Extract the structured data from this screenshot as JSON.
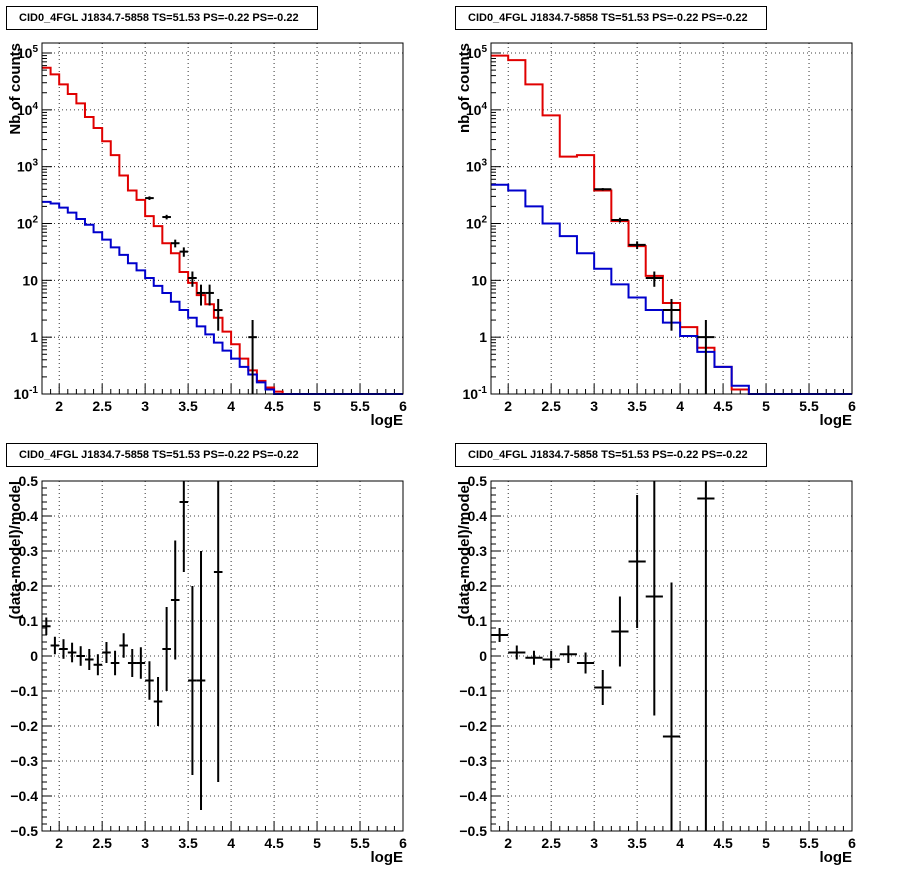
{
  "chart_data": [
    {
      "type": "step-histogram",
      "title": "CID0_4FGL J1834.7-5858 TS=51.53 PS=-0.22 PS=-0.22",
      "xlabel": "logE",
      "ylabel": "Nb of counts",
      "xlim": [
        1.8,
        6.0
      ],
      "ylim": [
        0.1,
        150000
      ],
      "yscale": "log",
      "grid": true,
      "xticks": [
        {
          "v": 2,
          "l": "2"
        },
        {
          "v": 2.5,
          "l": "2.5"
        },
        {
          "v": 3,
          "l": "3"
        },
        {
          "v": 3.5,
          "l": "3.5"
        },
        {
          "v": 4,
          "l": "4"
        },
        {
          "v": 4.5,
          "l": "4.5"
        },
        {
          "v": 5,
          "l": "5"
        },
        {
          "v": 5.5,
          "l": "5.5"
        },
        {
          "v": 6,
          "l": "6"
        }
      ],
      "yticks": [
        {
          "v": 0.1,
          "l": "10",
          "sup": "-1"
        },
        {
          "v": 1,
          "l": "1"
        },
        {
          "v": 10,
          "l": "10"
        },
        {
          "v": 100,
          "l": "10",
          "sup": "2"
        },
        {
          "v": 1000,
          "l": "10",
          "sup": "3"
        },
        {
          "v": 10000,
          "l": "10",
          "sup": "4"
        },
        {
          "v": 100000,
          "l": "10",
          "sup": "5"
        }
      ],
      "series": [
        {
          "color": "#e00000",
          "kind": "step",
          "edges": [
            1.8,
            1.9,
            2.0,
            2.1,
            2.2,
            2.3,
            2.4,
            2.5,
            2.6,
            2.7,
            2.8,
            2.9,
            3.0,
            3.1,
            3.2,
            3.3,
            3.4,
            3.5,
            3.6,
            3.7,
            3.8,
            3.9,
            4.0,
            4.1,
            4.2,
            4.3,
            4.4,
            4.5,
            4.6,
            4.7,
            4.8,
            4.9,
            5.0,
            5.1,
            5.2,
            5.3,
            5.4,
            5.5,
            5.6,
            5.7,
            5.8,
            5.9,
            6.0
          ],
          "values": [
            55000,
            42000,
            28000,
            19000,
            13000,
            7500,
            4800,
            2800,
            1600,
            700,
            380,
            260,
            135,
            90,
            45,
            30,
            14,
            9,
            5.5,
            3.8,
            2.2,
            1.25,
            0.75,
            0.42,
            0.26,
            0.17,
            0.13,
            0.11,
            0.1,
            0.1,
            0.1,
            0.1,
            0.1,
            0.1,
            0.1,
            0.1,
            0.1,
            0.1,
            0.1,
            0.1,
            0.1,
            0.1
          ]
        },
        {
          "color": "#0000cc",
          "kind": "step",
          "edges": [
            1.8,
            1.9,
            2.0,
            2.1,
            2.2,
            2.3,
            2.4,
            2.5,
            2.6,
            2.7,
            2.8,
            2.9,
            3.0,
            3.1,
            3.2,
            3.3,
            3.4,
            3.5,
            3.6,
            3.7,
            3.8,
            3.9,
            4.0,
            4.1,
            4.2,
            4.3,
            4.4,
            4.5,
            4.6,
            4.7,
            4.8,
            4.9,
            5.0,
            5.1,
            5.2,
            5.3,
            5.4,
            5.5,
            5.6,
            5.7,
            5.8,
            5.9,
            6.0
          ],
          "values": [
            240,
            225,
            190,
            155,
            120,
            95,
            70,
            52,
            38,
            28,
            20,
            15,
            11,
            8,
            6,
            4.2,
            3,
            2.2,
            1.55,
            1.12,
            0.8,
            0.58,
            0.42,
            0.3,
            0.22,
            0.16,
            0.12,
            0.1,
            0.1,
            0.1,
            0.1,
            0.1,
            0.1,
            0.1,
            0.1,
            0.1,
            0.1,
            0.1,
            0.1,
            0.1,
            0.1,
            0.1
          ]
        },
        {
          "color": "#000000",
          "kind": "errorbars",
          "halfwidth": 0.05,
          "points": [
            [
              3.05,
              280,
              20,
              20
            ],
            [
              3.25,
              130,
              12,
              12
            ],
            [
              3.35,
              45,
              7,
              7
            ],
            [
              3.45,
              32,
              6,
              6
            ],
            [
              3.55,
              11,
              3.3,
              3.3
            ],
            [
              3.65,
              6,
              2.4,
              2.4
            ],
            [
              3.75,
              6,
              2.4,
              2.4
            ],
            [
              3.85,
              3,
              1.7,
              1.7
            ],
            [
              4.25,
              1,
              0.95,
              1.0
            ]
          ]
        }
      ]
    },
    {
      "type": "step-histogram",
      "title": "CID0_4FGL J1834.7-5858 TS=51.53 PS=-0.22 PS=-0.22",
      "xlabel": "logE",
      "ylabel": "nb of counts",
      "xlim": [
        1.8,
        6.0
      ],
      "ylim": [
        0.1,
        150000
      ],
      "yscale": "log",
      "grid": true,
      "xticks": [
        {
          "v": 2,
          "l": "2"
        },
        {
          "v": 2.5,
          "l": "2.5"
        },
        {
          "v": 3,
          "l": "3"
        },
        {
          "v": 3.5,
          "l": "3.5"
        },
        {
          "v": 4,
          "l": "4"
        },
        {
          "v": 4.5,
          "l": "4.5"
        },
        {
          "v": 5,
          "l": "5"
        },
        {
          "v": 5.5,
          "l": "5.5"
        },
        {
          "v": 6,
          "l": "6"
        }
      ],
      "yticks": [
        {
          "v": 0.1,
          "l": "10",
          "sup": "-1"
        },
        {
          "v": 1,
          "l": "1"
        },
        {
          "v": 10,
          "l": "10"
        },
        {
          "v": 100,
          "l": "10",
          "sup": "2"
        },
        {
          "v": 1000,
          "l": "10",
          "sup": "3"
        },
        {
          "v": 10000,
          "l": "10",
          "sup": "4"
        },
        {
          "v": 100000,
          "l": "10",
          "sup": "5"
        }
      ],
      "series": [
        {
          "color": "#e00000",
          "kind": "step",
          "edges": [
            1.8,
            2.0,
            2.2,
            2.4,
            2.6,
            2.8,
            3.0,
            3.2,
            3.4,
            3.6,
            3.8,
            4.0,
            4.2,
            4.4,
            4.6,
            4.8,
            5.0,
            5.2,
            5.4,
            5.6,
            5.8,
            6.0
          ],
          "values": [
            90000,
            75000,
            28000,
            8000,
            1500,
            1600,
            380,
            110,
            40,
            12,
            4,
            1.5,
            0.65,
            0.3,
            0.12,
            0.1,
            0.1,
            0.1,
            0.1,
            0.1,
            0.1
          ]
        },
        {
          "color": "#0000cc",
          "kind": "step",
          "edges": [
            1.8,
            2.0,
            2.2,
            2.4,
            2.6,
            2.8,
            3.0,
            3.2,
            3.4,
            3.6,
            3.8,
            4.0,
            4.2,
            4.4,
            4.6,
            4.8,
            5.0,
            5.2,
            5.4,
            5.6,
            5.8,
            6.0
          ],
          "values": [
            480,
            380,
            200,
            100,
            60,
            30,
            16,
            8.5,
            5,
            3,
            1.8,
            1.05,
            0.55,
            0.3,
            0.14,
            0.1,
            0.1,
            0.1,
            0.1,
            0.1,
            0.1
          ]
        },
        {
          "color": "#000000",
          "kind": "errorbars",
          "halfwidth": 0.1,
          "points": [
            [
              3.1,
              400,
              20,
              20
            ],
            [
              3.3,
              115,
              11,
              11
            ],
            [
              3.5,
              42,
              6.5,
              6.5
            ],
            [
              3.7,
              11,
              3.3,
              3.3
            ],
            [
              3.9,
              3,
              1.7,
              1.7
            ],
            [
              4.3,
              1,
              0.95,
              1.0
            ]
          ]
        }
      ]
    },
    {
      "type": "scatter-errorbars",
      "title": "CID0_4FGL J1834.7-5858 TS=51.53 PS=-0.22 PS=-0.22",
      "xlabel": "logE",
      "ylabel": "(data-model)/model",
      "xlim": [
        1.8,
        6.0
      ],
      "ylim": [
        -0.5,
        0.5
      ],
      "yscale": "linear",
      "grid": true,
      "xticks": [
        {
          "v": 2,
          "l": "2"
        },
        {
          "v": 2.5,
          "l": "2.5"
        },
        {
          "v": 3,
          "l": "3"
        },
        {
          "v": 3.5,
          "l": "3.5"
        },
        {
          "v": 4,
          "l": "4"
        },
        {
          "v": 4.5,
          "l": "4.5"
        },
        {
          "v": 5,
          "l": "5"
        },
        {
          "v": 5.5,
          "l": "5.5"
        },
        {
          "v": 6,
          "l": "6"
        }
      ],
      "yticks": [
        {
          "v": -0.5,
          "l": "−0.5"
        },
        {
          "v": -0.4,
          "l": "−0.4"
        },
        {
          "v": -0.3,
          "l": "−0.3"
        },
        {
          "v": -0.2,
          "l": "−0.2"
        },
        {
          "v": -0.1,
          "l": "−0.1"
        },
        {
          "v": 0,
          "l": "0"
        },
        {
          "v": 0.1,
          "l": "0.1"
        },
        {
          "v": 0.2,
          "l": "0.2"
        },
        {
          "v": 0.3,
          "l": "0.3"
        },
        {
          "v": 0.4,
          "l": "0.4"
        },
        {
          "v": 0.5,
          "l": "0.5"
        }
      ],
      "series": [
        {
          "color": "#000000",
          "kind": "errorbars",
          "halfwidth": 0.05,
          "points": [
            [
              1.85,
              0.085,
              0.025,
              0.025
            ],
            [
              1.95,
              0.03,
              0.025,
              0.025
            ],
            [
              2.05,
              0.02,
              0.028,
              0.028
            ],
            [
              2.15,
              0.01,
              0.028,
              0.028
            ],
            [
              2.25,
              0.0,
              0.028,
              0.028
            ],
            [
              2.35,
              -0.01,
              0.03,
              0.03
            ],
            [
              2.45,
              -0.025,
              0.03,
              0.03
            ],
            [
              2.55,
              0.01,
              0.03,
              0.03
            ],
            [
              2.65,
              -0.02,
              0.035,
              0.035
            ],
            [
              2.75,
              0.03,
              0.035,
              0.035
            ],
            [
              2.85,
              -0.02,
              0.04,
              0.04
            ],
            [
              2.95,
              -0.02,
              0.045,
              0.045
            ],
            [
              3.05,
              -0.07,
              0.055,
              0.055
            ],
            [
              3.15,
              -0.13,
              0.07,
              0.07
            ],
            [
              3.25,
              0.02,
              0.12,
              0.12
            ],
            [
              3.35,
              0.16,
              0.17,
              0.17
            ],
            [
              3.45,
              0.44,
              0.2,
              0.2
            ],
            [
              3.55,
              -0.07,
              0.27,
              0.27
            ],
            [
              3.65,
              -0.07,
              0.37,
              0.37
            ],
            [
              3.85,
              0.24,
              0.6,
              0.6
            ]
          ]
        }
      ]
    },
    {
      "type": "scatter-errorbars",
      "title": "CID0_4FGL J1834.7-5858 TS=51.53 PS=-0.22 PS=-0.22",
      "xlabel": "logE",
      "ylabel": "(data-model)/model",
      "xlim": [
        1.8,
        6.0
      ],
      "ylim": [
        -0.5,
        0.5
      ],
      "yscale": "linear",
      "grid": true,
      "xticks": [
        {
          "v": 2,
          "l": "2"
        },
        {
          "v": 2.5,
          "l": "2.5"
        },
        {
          "v": 3,
          "l": "3"
        },
        {
          "v": 3.5,
          "l": "3.5"
        },
        {
          "v": 4,
          "l": "4"
        },
        {
          "v": 4.5,
          "l": "4.5"
        },
        {
          "v": 5,
          "l": "5"
        },
        {
          "v": 5.5,
          "l": "5.5"
        },
        {
          "v": 6,
          "l": "6"
        }
      ],
      "yticks": [
        {
          "v": -0.5,
          "l": "−0.5"
        },
        {
          "v": -0.4,
          "l": "−0.4"
        },
        {
          "v": -0.3,
          "l": "−0.3"
        },
        {
          "v": -0.2,
          "l": "−0.2"
        },
        {
          "v": -0.1,
          "l": "−0.1"
        },
        {
          "v": 0,
          "l": "0"
        },
        {
          "v": 0.1,
          "l": "0.1"
        },
        {
          "v": 0.2,
          "l": "0.2"
        },
        {
          "v": 0.3,
          "l": "0.3"
        },
        {
          "v": 0.4,
          "l": "0.4"
        },
        {
          "v": 0.5,
          "l": "0.5"
        }
      ],
      "series": [
        {
          "color": "#000000",
          "kind": "errorbars",
          "halfwidth": 0.1,
          "points": [
            [
              1.9,
              0.06,
              0.02,
              0.02
            ],
            [
              2.1,
              0.01,
              0.02,
              0.02
            ],
            [
              2.3,
              -0.005,
              0.02,
              0.02
            ],
            [
              2.5,
              -0.01,
              0.025,
              0.025
            ],
            [
              2.7,
              0.005,
              0.025,
              0.025
            ],
            [
              2.9,
              -0.02,
              0.03,
              0.03
            ],
            [
              3.1,
              -0.09,
              0.05,
              0.05
            ],
            [
              3.3,
              0.07,
              0.1,
              0.1
            ],
            [
              3.5,
              0.27,
              0.19,
              0.19
            ],
            [
              3.7,
              0.17,
              0.34,
              0.34
            ],
            [
              3.9,
              -0.23,
              0.44,
              0.44
            ],
            [
              4.3,
              0.45,
              0.95,
              0.95
            ]
          ]
        }
      ]
    }
  ]
}
